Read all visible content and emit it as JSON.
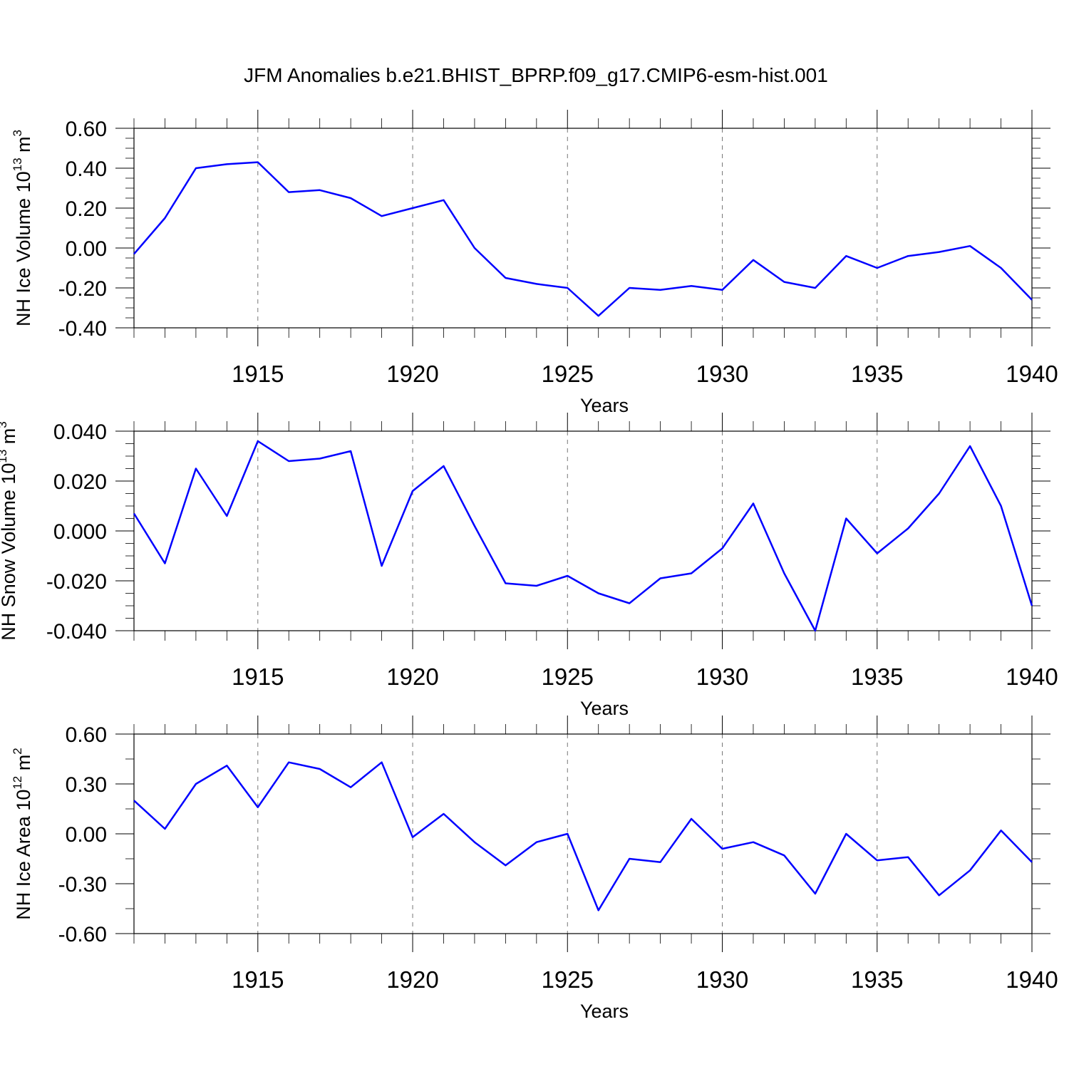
{
  "title": "JFM Anomalies b.e21.BHIST_BPRP.f09_g17.CMIP6-esm-hist.001",
  "chart_data": [
    {
      "type": "line",
      "xlabel": "Years",
      "ylabel": {
        "text": "NH Ice Volume 10",
        "sup": "13",
        "unit": " m",
        "unit_sup": "3"
      },
      "x": [
        1911,
        1912,
        1913,
        1914,
        1915,
        1916,
        1917,
        1918,
        1919,
        1920,
        1921,
        1922,
        1923,
        1924,
        1925,
        1926,
        1927,
        1928,
        1929,
        1930,
        1931,
        1932,
        1933,
        1934,
        1935,
        1936,
        1937,
        1938,
        1939,
        1940
      ],
      "values": [
        -0.03,
        0.15,
        0.4,
        0.42,
        0.43,
        0.28,
        0.29,
        0.25,
        0.16,
        0.2,
        0.24,
        0.0,
        -0.15,
        -0.18,
        -0.2,
        -0.34,
        -0.2,
        -0.21,
        -0.19,
        -0.21,
        -0.06,
        -0.17,
        -0.2,
        -0.04,
        -0.1,
        -0.04,
        -0.02,
        0.01,
        -0.1,
        -0.26
      ],
      "xlim": [
        1911,
        1940
      ],
      "ylim": [
        -0.4,
        0.6
      ],
      "yticks": [
        0.6,
        0.4,
        0.2,
        0.0,
        -0.2,
        -0.4
      ],
      "ytick_labels": [
        "0.60",
        "0.40",
        "0.20",
        "0.00",
        "-0.20",
        "-0.40"
      ],
      "xticks": [
        1915,
        1920,
        1925,
        1930,
        1935,
        1940
      ],
      "xtick_labels": [
        "1915",
        "1920",
        "1925",
        "1930",
        "1935",
        "1940"
      ],
      "line_color": "#0000ff",
      "grid": "vertical dashed at major x ticks"
    },
    {
      "type": "line",
      "xlabel": "Years",
      "ylabel": {
        "text": "NH Snow Volume 10",
        "sup": "13",
        "unit": " m",
        "unit_sup": "3"
      },
      "x": [
        1911,
        1912,
        1913,
        1914,
        1915,
        1916,
        1917,
        1918,
        1919,
        1920,
        1921,
        1922,
        1923,
        1924,
        1925,
        1926,
        1927,
        1928,
        1929,
        1930,
        1931,
        1932,
        1933,
        1934,
        1935,
        1936,
        1937,
        1938,
        1939,
        1940
      ],
      "values": [
        0.007,
        -0.013,
        0.025,
        0.006,
        0.036,
        0.028,
        0.029,
        0.032,
        -0.014,
        0.016,
        0.026,
        0.002,
        -0.021,
        -0.022,
        -0.018,
        -0.025,
        -0.029,
        -0.019,
        -0.017,
        -0.007,
        0.011,
        -0.017,
        -0.04,
        0.005,
        -0.009,
        0.001,
        0.015,
        0.034,
        0.01,
        -0.03
      ],
      "xlim": [
        1911,
        1940
      ],
      "ylim": [
        -0.04,
        0.04
      ],
      "yticks": [
        0.04,
        0.02,
        0.0,
        -0.02,
        -0.04
      ],
      "ytick_labels": [
        "0.040",
        "0.020",
        "0.000",
        "-0.020",
        "-0.040"
      ],
      "xticks": [
        1915,
        1920,
        1925,
        1930,
        1935,
        1940
      ],
      "xtick_labels": [
        "1915",
        "1920",
        "1925",
        "1930",
        "1935",
        "1940"
      ],
      "line_color": "#0000ff",
      "grid": "vertical dashed at major x ticks"
    },
    {
      "type": "line",
      "xlabel": "Years",
      "ylabel": {
        "text": "NH Ice Area 10",
        "sup": "12",
        "unit": " m",
        "unit_sup": "2"
      },
      "x": [
        1911,
        1912,
        1913,
        1914,
        1915,
        1916,
        1917,
        1918,
        1919,
        1920,
        1921,
        1922,
        1923,
        1924,
        1925,
        1926,
        1927,
        1928,
        1929,
        1930,
        1931,
        1932,
        1933,
        1934,
        1935,
        1936,
        1937,
        1938,
        1939,
        1940
      ],
      "values": [
        0.2,
        0.03,
        0.3,
        0.41,
        0.16,
        0.43,
        0.39,
        0.28,
        0.43,
        -0.02,
        0.12,
        -0.05,
        -0.19,
        -0.05,
        0.0,
        -0.46,
        -0.15,
        -0.17,
        0.09,
        -0.09,
        -0.05,
        -0.13,
        -0.36,
        0.0,
        -0.16,
        -0.14,
        -0.37,
        -0.22,
        0.02,
        -0.17
      ],
      "xlim": [
        1911,
        1940
      ],
      "ylim": [
        -0.6,
        0.6
      ],
      "yticks": [
        0.6,
        0.3,
        0.0,
        -0.3,
        -0.6
      ],
      "ytick_labels": [
        "0.60",
        "0.30",
        "0.00",
        "-0.30",
        "-0.60"
      ],
      "xticks": [
        1915,
        1920,
        1925,
        1930,
        1935,
        1940
      ],
      "xtick_labels": [
        "1915",
        "1920",
        "1925",
        "1930",
        "1935",
        "1940"
      ],
      "line_color": "#0000ff",
      "grid": "vertical dashed at major x ticks"
    }
  ]
}
